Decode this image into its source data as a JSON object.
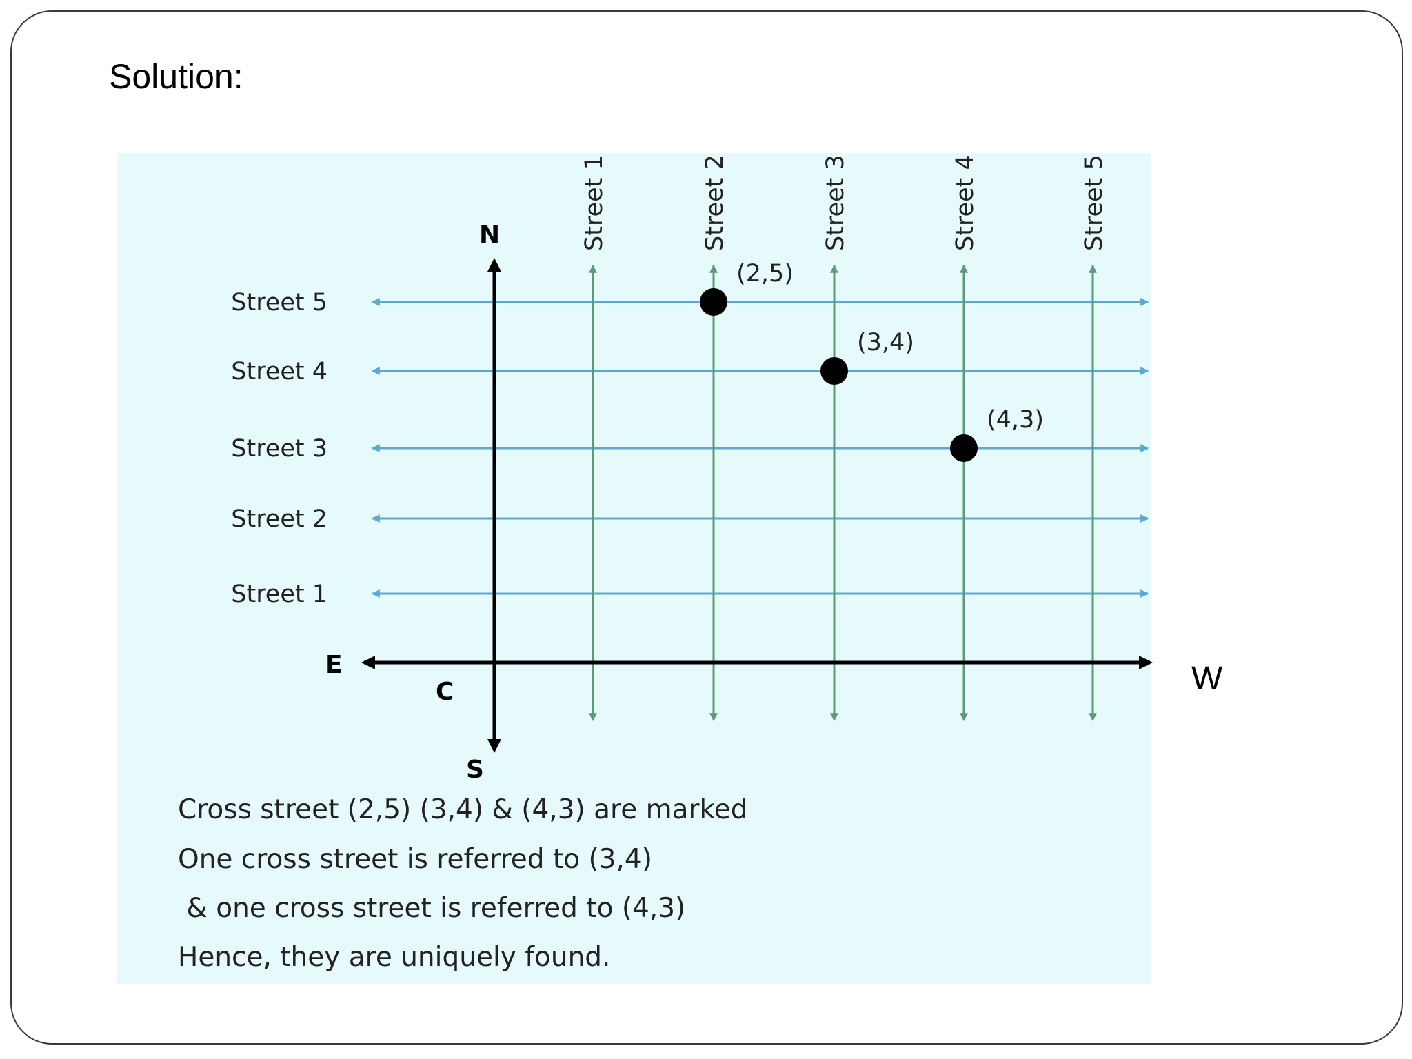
{
  "title": "Solution:",
  "colors": {
    "panel": "#e6f9fb",
    "horizontal_street": "#5aa9d0",
    "vertical_street": "#5c9a77",
    "axis": "#000000",
    "point": "#000000"
  },
  "diagram": {
    "compass": {
      "north": "N",
      "south": "S",
      "east": "E",
      "west": "W",
      "center": "C"
    },
    "horizontal_streets": [
      "Street 1",
      "Street 2",
      "Street 3",
      "Street 4",
      "Street 5"
    ],
    "vertical_streets": [
      "Street 1",
      "Street 2",
      "Street 3",
      "Street 4",
      "Street 5"
    ],
    "points": [
      {
        "x": 2,
        "y": 5,
        "label": "(2,5)"
      },
      {
        "x": 3,
        "y": 4,
        "label": "(3,4)"
      },
      {
        "x": 4,
        "y": 3,
        "label": "(4,3)"
      }
    ]
  },
  "caption": {
    "line1": "Cross street (2,5) (3,4) & (4,3) are marked",
    "line2": "One cross street is referred to (3,4)",
    "line3": " & one cross street is referred to (4,3)",
    "line4": "Hence, they are uniquely found."
  }
}
